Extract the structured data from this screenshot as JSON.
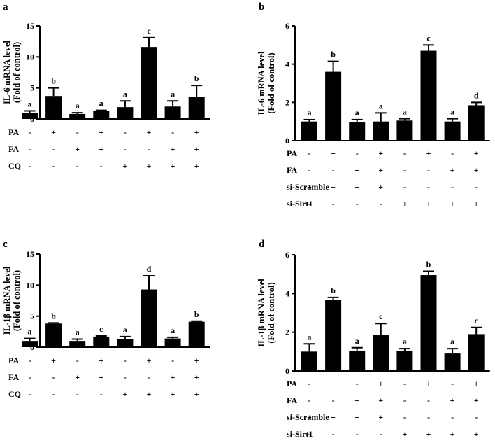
{
  "chart_data": [
    {
      "type": "bar",
      "panel_label": "a",
      "ylabel_line1": "IL-6 mRNA level",
      "ylabel_line2": "(Fold of control)",
      "ylim": [
        0,
        15
      ],
      "yticks": [
        0,
        5,
        10,
        15
      ],
      "values": [
        1.0,
        3.7,
        0.8,
        1.3,
        1.9,
        11.6,
        2.0,
        3.5
      ],
      "errors": [
        0.3,
        1.3,
        0.2,
        0.1,
        1.0,
        1.5,
        0.9,
        1.9
      ],
      "letters": [
        "a",
        "b",
        "a",
        "a",
        "a",
        "c",
        "a",
        "b"
      ],
      "conditions": [
        {
          "name": "PA",
          "marks": [
            "-",
            "+",
            "-",
            "+",
            "-",
            "+",
            "-",
            "+"
          ]
        },
        {
          "name": "FA",
          "marks": [
            "-",
            "-",
            "+",
            "+",
            "-",
            "-",
            "+",
            "+"
          ]
        },
        {
          "name": "CQ",
          "marks": [
            "-",
            "-",
            "-",
            "-",
            "+",
            "+",
            "+",
            "+"
          ]
        }
      ]
    },
    {
      "type": "bar",
      "panel_label": "b",
      "ylabel_line1": "IL-6 mRNA level",
      "ylabel_line2": "(Fold of control)",
      "ylim": [
        0,
        6
      ],
      "yticks": [
        0,
        2,
        4,
        6
      ],
      "values": [
        1.0,
        3.6,
        0.95,
        1.0,
        1.05,
        4.7,
        1.0,
        1.85
      ],
      "errors": [
        0.1,
        0.55,
        0.15,
        0.45,
        0.1,
        0.3,
        0.15,
        0.15
      ],
      "letters": [
        "a",
        "b",
        "a",
        "a",
        "a",
        "c",
        "a",
        "d"
      ],
      "conditions": [
        {
          "name": "PA",
          "marks": [
            "-",
            "+",
            "-",
            "+",
            "-",
            "+",
            "-",
            "+"
          ]
        },
        {
          "name": "FA",
          "marks": [
            "-",
            "-",
            "+",
            "+",
            "-",
            "-",
            "+",
            "+"
          ]
        },
        {
          "name": "si-Scramble",
          "marks": [
            "+",
            "+",
            "+",
            "+",
            "-",
            "-",
            "-",
            "-"
          ]
        },
        {
          "name": "si-Sirt1",
          "marks": [
            "-",
            "-",
            "-",
            "-",
            "+",
            "+",
            "+",
            "+"
          ]
        }
      ]
    },
    {
      "type": "bar",
      "panel_label": "c",
      "ylabel_line1": "IL-1β  mRNA level",
      "ylabel_line2": "(Fold of control)",
      "ylim": [
        0,
        15
      ],
      "yticks": [
        0,
        5,
        10,
        15
      ],
      "values": [
        1.0,
        3.8,
        1.0,
        1.7,
        1.3,
        9.3,
        1.4,
        4.1
      ],
      "errors": [
        0.4,
        0.1,
        0.3,
        0.1,
        0.4,
        2.2,
        0.2,
        0.1
      ],
      "letters": [
        "a",
        "b",
        "a",
        "c",
        "a",
        "d",
        "a",
        "b"
      ],
      "conditions": [
        {
          "name": "PA",
          "marks": [
            "-",
            "+",
            "-",
            "+",
            "-",
            "+",
            "-",
            "+"
          ]
        },
        {
          "name": "FA",
          "marks": [
            "-",
            "-",
            "+",
            "+",
            "-",
            "-",
            "+",
            "+"
          ]
        },
        {
          "name": "CQ",
          "marks": [
            "-",
            "-",
            "-",
            "-",
            "+",
            "+",
            "+",
            "+"
          ]
        }
      ]
    },
    {
      "type": "bar",
      "panel_label": "d",
      "ylabel_line1": "IL-1β mRNA level",
      "ylabel_line2": "(Fold of control)",
      "ylim": [
        0,
        6
      ],
      "yticks": [
        0,
        2,
        4,
        6
      ],
      "values": [
        1.0,
        3.65,
        1.05,
        1.85,
        1.05,
        4.95,
        0.9,
        1.9
      ],
      "errors": [
        0.4,
        0.15,
        0.15,
        0.6,
        0.1,
        0.2,
        0.25,
        0.35
      ],
      "letters": [
        "a",
        "b",
        "a",
        "c",
        "a",
        "b",
        "a",
        "c"
      ],
      "conditions": [
        {
          "name": "PA",
          "marks": [
            "-",
            "+",
            "-",
            "+",
            "-",
            "+",
            "-",
            "+"
          ]
        },
        {
          "name": "FA",
          "marks": [
            "-",
            "-",
            "+",
            "+",
            "-",
            "-",
            "+",
            "+"
          ]
        },
        {
          "name": "si-Scramble",
          "marks": [
            "+",
            "+",
            "+",
            "+",
            "-",
            "-",
            "-",
            "-"
          ]
        },
        {
          "name": "si-Sirt1",
          "marks": [
            "-",
            "-",
            "-",
            "-",
            "+",
            "+",
            "+",
            "+"
          ]
        }
      ]
    }
  ]
}
